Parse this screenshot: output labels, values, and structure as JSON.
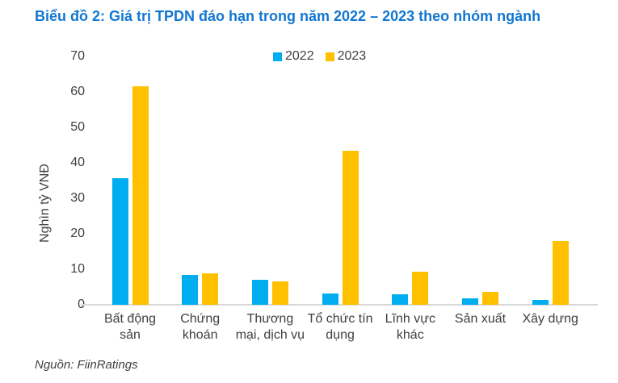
{
  "title": "Biểu đồ 2: Giá trị TPDN đáo hạn trong năm 2022 – 2023 theo nhóm ngành",
  "source": "Nguồn: FiinRatings",
  "colors": {
    "title_blue": "#1277D2",
    "series_2022": "#00AEEF",
    "series_2023": "#FFC000",
    "axis_line": "#D9D9D9",
    "text_gray": "#404040"
  },
  "chart_data": {
    "type": "bar",
    "title": "Biểu đồ 2: Giá trị TPDN đáo hạn trong năm 2022 – 2023 theo nhóm ngành",
    "xlabel": "",
    "ylabel": "Nghìn tỷ VNĐ",
    "ylim": [
      0,
      70
    ],
    "yticks": [
      0,
      10,
      20,
      30,
      40,
      50,
      60,
      70
    ],
    "grid": false,
    "legend_position": "top-center",
    "categories": [
      "Bất động\nsản",
      "Chứng\nkhoán",
      "Thương\nmại, dịch vụ",
      "Tổ chức tín\ndụng",
      "Lĩnh vực\nkhác",
      "Sản xuất",
      "Xây dựng"
    ],
    "series": [
      {
        "name": "2022",
        "color": "#00AEEF",
        "values": [
          35.6,
          8.3,
          7.0,
          3.2,
          3.0,
          1.9,
          1.4
        ]
      },
      {
        "name": "2023",
        "color": "#FFC000",
        "values": [
          61.5,
          8.9,
          6.6,
          43.3,
          9.3,
          3.7,
          17.9
        ]
      }
    ]
  }
}
